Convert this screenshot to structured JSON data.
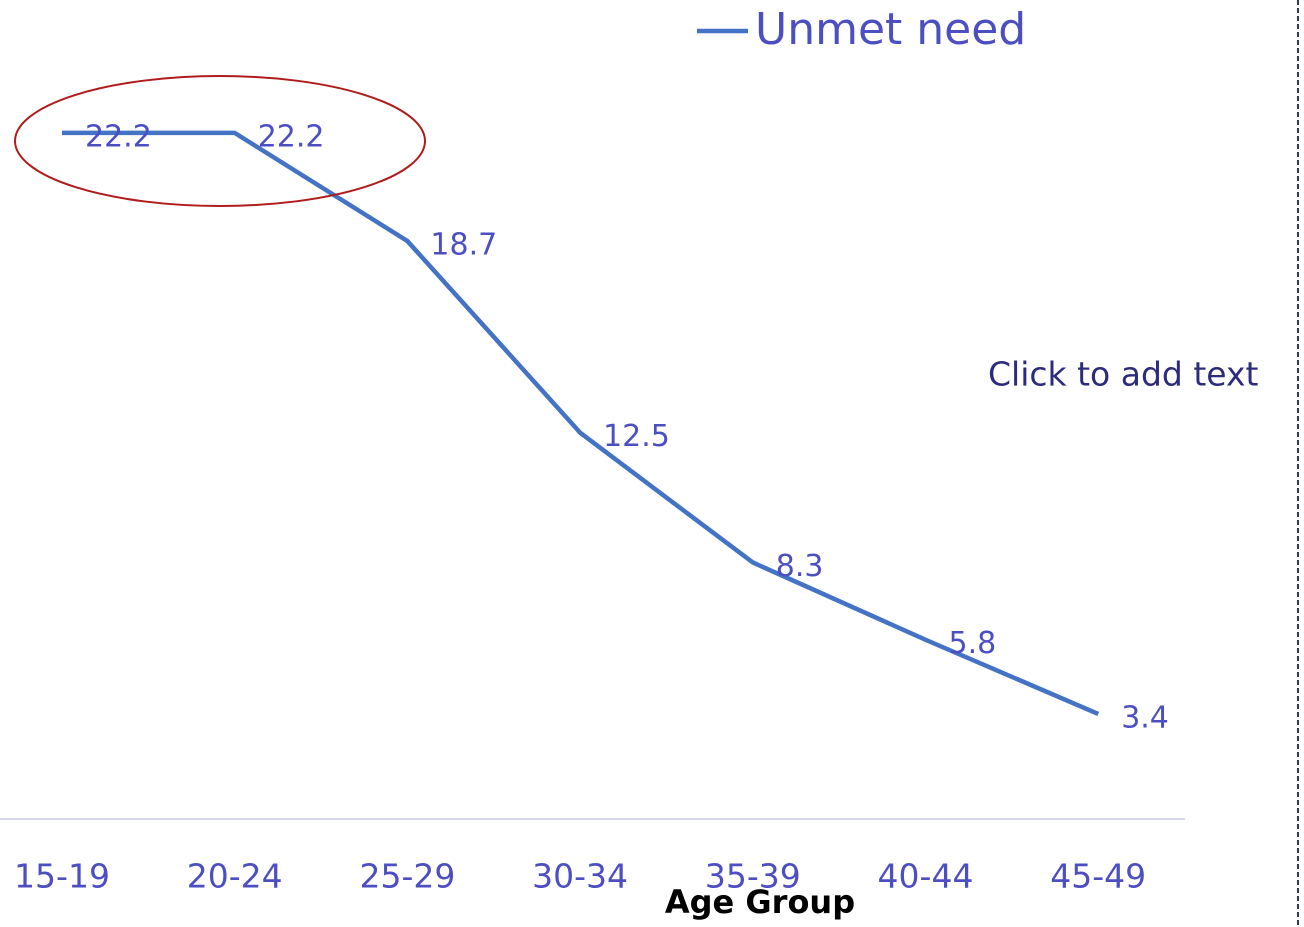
{
  "chart_data": {
    "type": "line",
    "categories": [
      "15-19",
      "20-24",
      "25-29",
      "30-34",
      "35-39",
      "40-44",
      "45-49"
    ],
    "series": [
      {
        "name": "Unmet need",
        "color": "#4472c4",
        "values": [
          22.2,
          22.2,
          18.7,
          12.5,
          8.3,
          5.8,
          3.4
        ]
      }
    ],
    "x_label": "Age Group",
    "ylim": [
      0,
      26.5
    ],
    "placeholder": "Click to add text"
  }
}
